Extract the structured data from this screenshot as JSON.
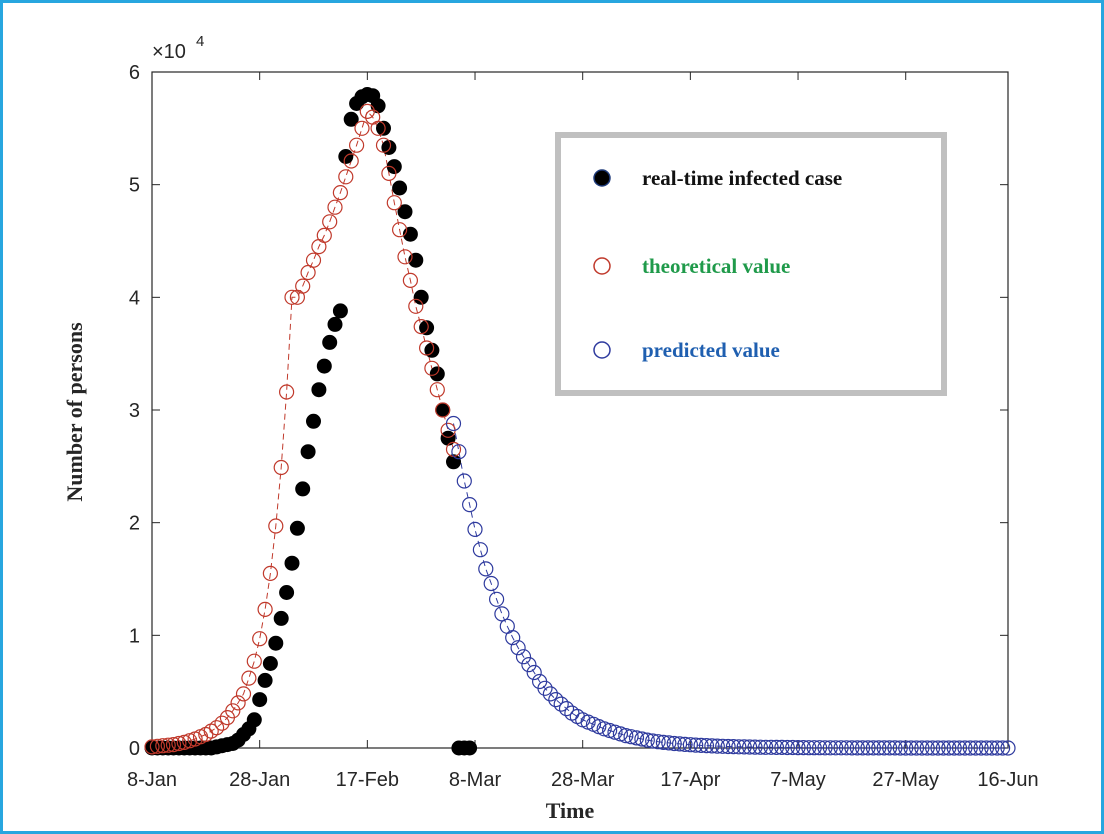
{
  "chart_data": {
    "type": "scatter",
    "title": "",
    "xlabel": "Time",
    "ylabel": "Number of persons",
    "y_exponent_label": "×10",
    "y_exponent_power": "4",
    "xlim": [
      0,
      159
    ],
    "ylim": [
      0,
      60000
    ],
    "x_ticks": [
      {
        "label": "8-Jan",
        "day": 0
      },
      {
        "label": "28-Jan",
        "day": 20
      },
      {
        "label": "17-Feb",
        "day": 40
      },
      {
        "label": "8-Mar",
        "day": 60
      },
      {
        "label": "28-Mar",
        "day": 80
      },
      {
        "label": "17-Apr",
        "day": 100
      },
      {
        "label": "7-May",
        "day": 120
      },
      {
        "label": "27-May",
        "day": 140
      },
      {
        "label": "16-Jun",
        "day": 160
      }
    ],
    "y_ticks": [
      {
        "label": "0",
        "value": 0
      },
      {
        "label": "1",
        "value": 10000
      },
      {
        "label": "2",
        "value": 20000
      },
      {
        "label": "3",
        "value": 30000
      },
      {
        "label": "4",
        "value": 40000
      },
      {
        "label": "5",
        "value": 50000
      },
      {
        "label": "6",
        "value": 60000
      }
    ],
    "grid": false,
    "legend_position": "top-right",
    "series": [
      {
        "name": "real-time infected case",
        "color": "#000000",
        "marker": "filled-circle",
        "x": [
          0,
          1,
          2,
          3,
          4,
          5,
          6,
          7,
          8,
          9,
          10,
          11,
          12,
          13,
          14,
          15,
          16,
          17,
          18,
          19,
          20,
          21,
          22,
          23,
          24,
          25,
          26,
          27,
          28,
          29,
          30,
          31,
          32,
          33,
          34,
          35,
          36,
          37,
          38,
          39,
          40,
          41,
          42,
          43,
          44,
          45,
          46,
          47,
          48,
          49,
          50,
          51,
          52,
          53,
          54,
          55,
          56,
          57,
          58,
          59
        ],
        "y": [
          0,
          0,
          0,
          0,
          0,
          0,
          0,
          0,
          0,
          0,
          0,
          0,
          100,
          200,
          300,
          400,
          700,
          1200,
          1700,
          2500,
          4300,
          6000,
          7500,
          9300,
          11500,
          13800,
          16400,
          19500,
          23000,
          26300,
          29000,
          31800,
          33900,
          36000,
          37600,
          38800,
          52500,
          55800,
          57200,
          57800,
          58000,
          57900,
          57000,
          55000,
          53300,
          51600,
          49700,
          47600,
          45600,
          43300,
          40000,
          37300,
          35300,
          33200,
          30000,
          27500,
          25400,
          0,
          0,
          0
        ]
      },
      {
        "name": "theoretical value",
        "color": "#c0392b",
        "marker": "open-circle",
        "x": [
          0,
          1,
          2,
          3,
          4,
          5,
          6,
          7,
          8,
          9,
          10,
          11,
          12,
          13,
          14,
          15,
          16,
          17,
          18,
          19,
          20,
          21,
          22,
          23,
          24,
          25,
          26,
          27,
          28,
          29,
          30,
          31,
          32,
          33,
          34,
          35,
          36,
          37,
          38,
          39,
          40,
          41,
          42,
          43,
          44,
          45,
          46,
          47,
          48,
          49,
          50,
          51,
          52,
          53,
          54,
          55,
          56
        ],
        "y": [
          100,
          150,
          200,
          250,
          300,
          400,
          500,
          650,
          800,
          1000,
          1200,
          1500,
          1800,
          2200,
          2700,
          3300,
          4000,
          4800,
          6200,
          7700,
          9700,
          12300,
          15500,
          19700,
          24900,
          31600,
          40000,
          40000,
          41000,
          42200,
          43300,
          44500,
          45500,
          46700,
          48000,
          49300,
          50700,
          52100,
          53500,
          55000,
          56500,
          56000,
          55000,
          53500,
          51000,
          48400,
          46000,
          43600,
          41500,
          39200,
          37400,
          35500,
          33700,
          31800,
          30000,
          28200,
          26500
        ]
      },
      {
        "name": "predicted value",
        "color": "#2e3a9e",
        "marker": "open-circle",
        "x": [
          56,
          57,
          58,
          59,
          60,
          61,
          62,
          63,
          64,
          65,
          66,
          67,
          68,
          69,
          70,
          71,
          72,
          73,
          74,
          75,
          76,
          77,
          78,
          79,
          80,
          81,
          82,
          83,
          84,
          85,
          86,
          87,
          88,
          89,
          90,
          91,
          92,
          93,
          94,
          95,
          96,
          97,
          98,
          99,
          100,
          101,
          102,
          103,
          104,
          105,
          106,
          107,
          108,
          109,
          110,
          111,
          112,
          113,
          114,
          115,
          116,
          117,
          118,
          119,
          120,
          121,
          122,
          123,
          124,
          125,
          126,
          127,
          128,
          129,
          130,
          131,
          132,
          133,
          134,
          135,
          136,
          137,
          138,
          139,
          140,
          141,
          142,
          143,
          144,
          145,
          146,
          147,
          148,
          149,
          150,
          151,
          152,
          153,
          154,
          155,
          156,
          157,
          158,
          159
        ],
        "y": [
          28800,
          26300,
          23700,
          21600,
          19400,
          17600,
          15900,
          14600,
          13200,
          11900,
          10800,
          9800,
          8900,
          8100,
          7400,
          6700,
          5900,
          5300,
          4800,
          4300,
          3900,
          3500,
          3100,
          2800,
          2500,
          2300,
          2100,
          1900,
          1700,
          1550,
          1400,
          1250,
          1100,
          1000,
          900,
          800,
          700,
          620,
          560,
          500,
          450,
          400,
          360,
          320,
          290,
          260,
          230,
          210,
          190,
          170,
          150,
          135,
          120,
          110,
          100,
          90,
          80,
          70,
          65,
          60,
          55,
          50,
          45,
          40,
          36,
          33,
          30,
          27,
          24,
          22,
          20,
          18,
          16,
          14,
          12,
          11,
          10,
          9,
          8,
          7,
          6,
          5,
          5,
          4,
          4,
          3,
          3,
          3,
          2,
          2,
          2,
          2,
          1,
          1,
          1,
          1,
          1,
          1,
          1,
          1,
          0,
          0,
          0,
          0
        ]
      }
    ]
  }
}
